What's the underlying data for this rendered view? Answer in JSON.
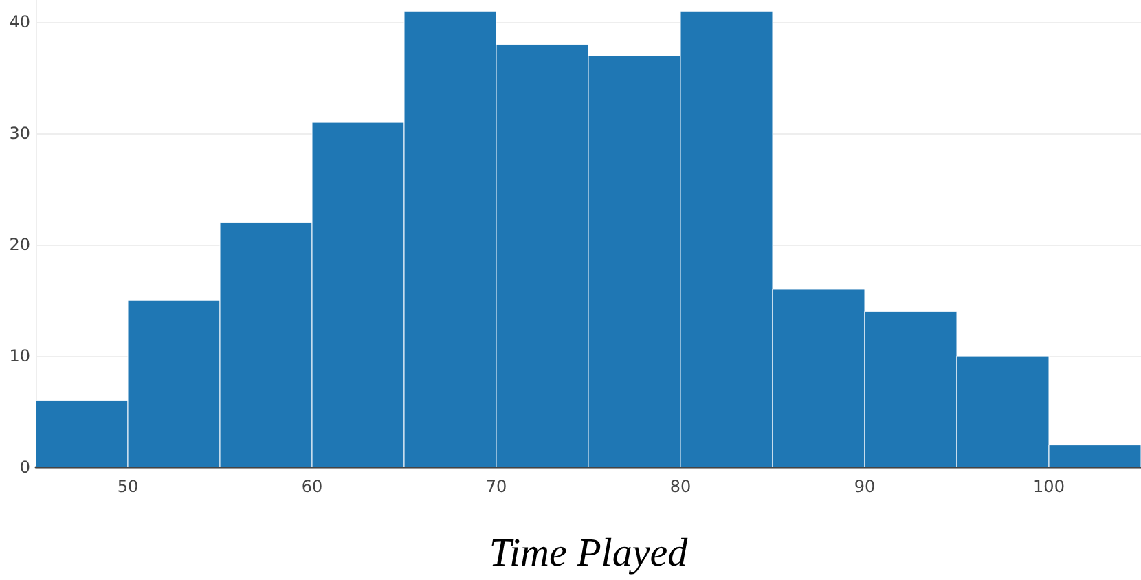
{
  "chart_data": {
    "type": "histogram",
    "xlabel": "Time Played",
    "bins": [
      45,
      50,
      55,
      60,
      65,
      70,
      75,
      80,
      85,
      90,
      95,
      100,
      105
    ],
    "values": [
      6,
      15,
      22,
      31,
      41,
      38,
      37,
      41,
      16,
      14,
      10,
      2
    ],
    "color": "#1f77b4",
    "xlim": [
      45,
      105
    ],
    "xticks": [
      50,
      60,
      70,
      80,
      90,
      100
    ],
    "ylim": [
      0,
      42
    ],
    "yticks": [
      0,
      10,
      20,
      30,
      40
    ],
    "grid": "y"
  }
}
